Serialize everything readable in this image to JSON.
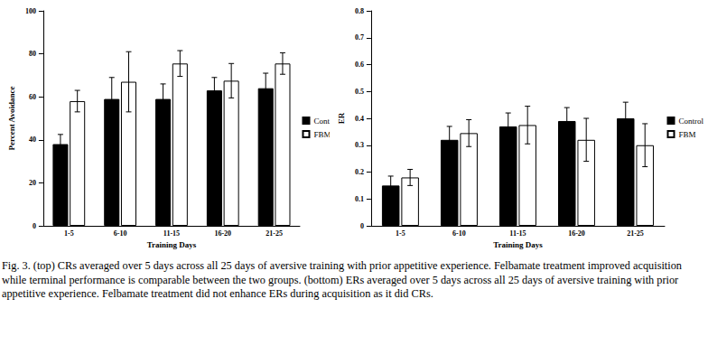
{
  "chart_data": [
    {
      "type": "bar",
      "x_label": "Training Days",
      "y_label": "Percent Avoidance",
      "categories": [
        "1-5",
        "6-10",
        "11-15",
        "16-20",
        "21-25"
      ],
      "series": [
        {
          "name": "Control",
          "color": "#000000",
          "values": [
            38,
            59,
            59,
            63,
            64
          ],
          "errors": [
            4.5,
            10,
            7,
            6,
            7
          ]
        },
        {
          "name": "FBM",
          "color": "#ffffff",
          "values": [
            58,
            67,
            75.5,
            67.5,
            75.5
          ],
          "errors": [
            5,
            14,
            6,
            8,
            5
          ]
        }
      ],
      "ylim": [
        0,
        100
      ],
      "yticks": [
        0,
        20,
        40,
        60,
        80,
        100
      ],
      "legend": "right",
      "grid": false
    },
    {
      "type": "bar",
      "x_label": "Training Days",
      "y_label": "ER",
      "categories": [
        "1-5",
        "6-10",
        "11-15",
        "16-20",
        "21-25"
      ],
      "series": [
        {
          "name": "Control",
          "color": "#000000",
          "values": [
            0.15,
            0.32,
            0.37,
            0.39,
            0.4
          ],
          "errors": [
            0.035,
            0.05,
            0.05,
            0.05,
            0.06
          ]
        },
        {
          "name": "FBM",
          "color": "#ffffff",
          "values": [
            0.18,
            0.345,
            0.375,
            0.32,
            0.3
          ],
          "errors": [
            0.03,
            0.05,
            0.07,
            0.08,
            0.08
          ]
        }
      ],
      "ylim": [
        0,
        0.8
      ],
      "yticks": [
        0,
        0.1,
        0.2,
        0.3,
        0.4,
        0.5,
        0.6,
        0.7,
        0.8
      ],
      "legend": "right",
      "grid": false
    }
  ],
  "caption": "Fig. 3. (top) CRs averaged over 5 days across all 25 days of aversive training with prior appetitive experience. Felbamate treatment improved acquisition while terminal performance is comparable between the two groups. (bottom) ERs averaged over 5 days across all 25 days of aversive training with prior appetitive experience. Felbamate treatment did not enhance ERs during acquisition as it did CRs."
}
